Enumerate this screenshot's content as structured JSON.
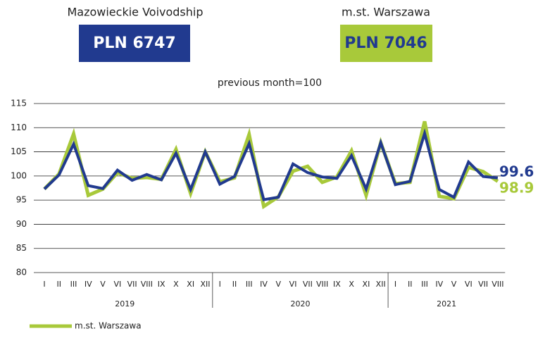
{
  "chart_data": {
    "type": "line",
    "subtitle": "previous month=100",
    "categories": [
      "I",
      "II",
      "III",
      "IV",
      "V",
      "VI",
      "VII",
      "VIII",
      "IX",
      "X",
      "XI",
      "XII",
      "I",
      "II",
      "III",
      "IV",
      "V",
      "VI",
      "VII",
      "VIII",
      "IX",
      "X",
      "XI",
      "XII",
      "I",
      "II",
      "III",
      "IV",
      "V",
      "VI",
      "VII",
      "VIII"
    ],
    "x_groups": [
      {
        "label": "2019",
        "span": 12
      },
      {
        "label": "2020",
        "span": 12
      },
      {
        "label": "2021",
        "span": 8
      }
    ],
    "ylim": [
      80,
      115
    ],
    "yticks": [
      80,
      85,
      90,
      95,
      100,
      105,
      110,
      115
    ],
    "grid": true,
    "series": [
      {
        "name": "m.st. Warszawa",
        "color": "#a8c93a",
        "summary": "PLN 7046",
        "in_legend": true,
        "values": [
          97.3,
          100.4,
          108.7,
          96.0,
          97.3,
          100.7,
          99.5,
          99.7,
          99.3,
          105.5,
          96.4,
          105.0,
          98.8,
          99.6,
          108.6,
          93.7,
          95.7,
          101.0,
          102.0,
          98.7,
          99.8,
          105.2,
          96.0,
          106.9,
          98.4,
          98.7,
          111.3,
          95.8,
          95.3,
          101.8,
          100.9,
          98.9
        ]
      },
      {
        "name": "Mazowieckie Voivodship",
        "color": "#213a8f",
        "summary": "PLN 6747",
        "in_legend": false,
        "values": [
          97.3,
          100.2,
          106.6,
          98.0,
          97.4,
          101.2,
          99.1,
          100.3,
          99.2,
          104.7,
          97.2,
          105.0,
          98.3,
          99.9,
          106.7,
          95.1,
          95.6,
          102.5,
          100.7,
          99.8,
          99.5,
          104.2,
          97.3,
          106.9,
          98.2,
          98.9,
          108.8,
          97.2,
          95.6,
          102.9,
          99.9,
          99.6
        ]
      }
    ]
  }
}
